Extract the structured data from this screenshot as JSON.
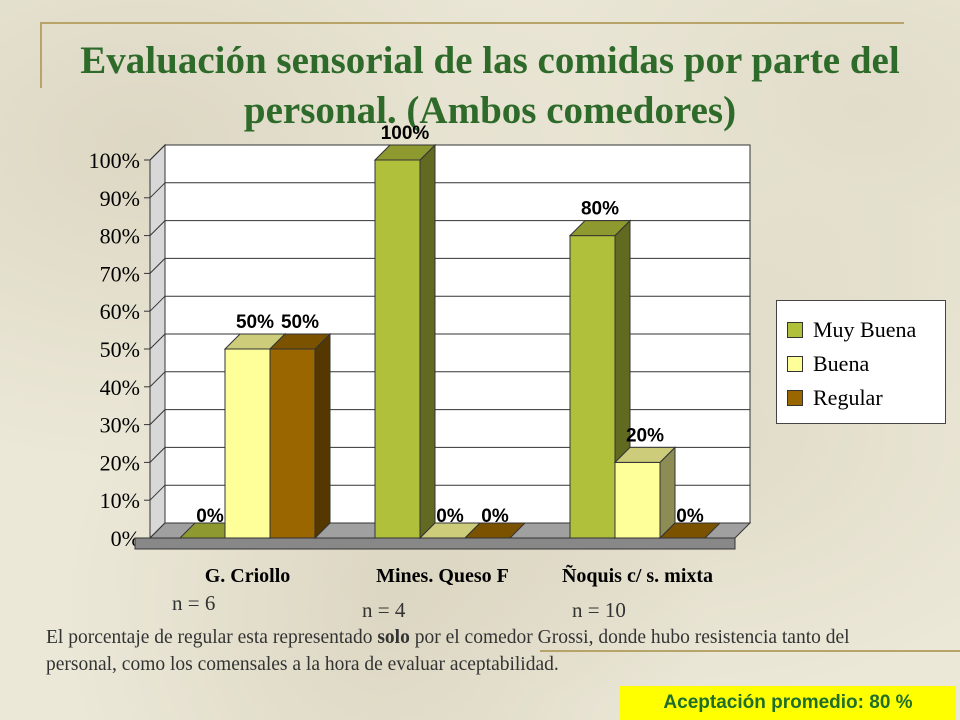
{
  "title": "Evaluación sensorial de las comidas por parte del personal. (Ambos comedores)",
  "chart_data": {
    "type": "bar",
    "categories": [
      "G. Criollo",
      "Mines. Queso F",
      "Ñoquis c/ s. mixta"
    ],
    "series": [
      {
        "name": "Muy Buena",
        "values": [
          0,
          100,
          80
        ],
        "color": "#b1c03b"
      },
      {
        "name": "Buena",
        "values": [
          50,
          0,
          20
        ],
        "color": "#ffff99"
      },
      {
        "name": "Regular",
        "values": [
          50,
          0,
          0
        ],
        "color": "#996600"
      }
    ],
    "data_labels": [
      [
        "0%",
        "50%",
        "50%"
      ],
      [
        "100%",
        "0%",
        "0%"
      ],
      [
        "80%",
        "20%",
        "0%"
      ]
    ],
    "ytick_labels": [
      "0%",
      "10%",
      "20%",
      "30%",
      "40%",
      "50%",
      "60%",
      "70%",
      "80%",
      "90%",
      "100%"
    ],
    "ylim": [
      0,
      100
    ],
    "grid": true,
    "legend_position": "right",
    "style": "3d"
  },
  "n_labels": [
    "n = 6",
    "n = 4",
    "n = 10"
  ],
  "note": {
    "part1": "El porcentaje de regular esta representado ",
    "bold": "solo",
    "part2": " por el comedor Grossi, donde hubo resistencia tanto del personal, como los comensales a la hora de evaluar aceptabilidad."
  },
  "summary": "Aceptación promedio: 80 %"
}
